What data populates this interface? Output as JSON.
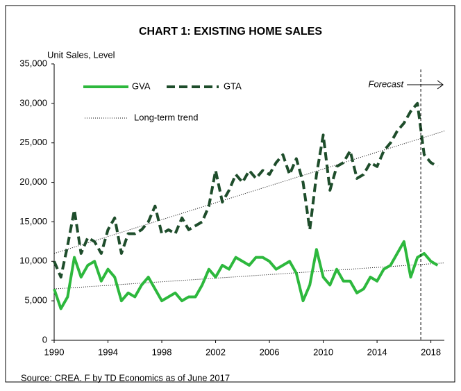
{
  "chart_data": {
    "type": "line",
    "title": "CHART 1: EXISTING HOME SALES",
    "y_axis_label": "Unit Sales, Level",
    "forecast_label": "Forecast",
    "forecast_start": 2017.25,
    "source": "Source: CREA. F by TD Economics as of  June 2017",
    "x": [
      1990,
      1990.5,
      1991,
      1991.5,
      1992,
      1992.5,
      1993,
      1993.5,
      1994,
      1994.5,
      1995,
      1995.5,
      1996,
      1996.5,
      1997,
      1997.5,
      1998,
      1998.5,
      1999,
      1999.5,
      2000,
      2000.5,
      2001,
      2001.5,
      2002,
      2002.5,
      2003,
      2003.5,
      2004,
      2004.5,
      2005,
      2005.5,
      2006,
      2006.5,
      2007,
      2007.5,
      2008,
      2008.5,
      2009,
      2009.5,
      2010,
      2010.5,
      2011,
      2011.5,
      2012,
      2012.5,
      2013,
      2013.5,
      2014,
      2014.5,
      2015,
      2015.5,
      2016,
      2016.5,
      2017,
      2017.5,
      2018,
      2018.5
    ],
    "series": [
      {
        "name": "GVA",
        "color": "#2db83d",
        "style": "solid",
        "values": [
          6500,
          4000,
          5500,
          10500,
          8000,
          9500,
          10000,
          7500,
          9000,
          8000,
          5000,
          6000,
          5500,
          7000,
          8000,
          6500,
          5000,
          5500,
          6000,
          5000,
          5500,
          5500,
          7000,
          9000,
          8000,
          9500,
          9000,
          10500,
          10000,
          9500,
          10500,
          10500,
          10000,
          9000,
          9500,
          10000,
          8500,
          5000,
          7000,
          11500,
          8000,
          7000,
          9000,
          7500,
          7500,
          6000,
          6500,
          8000,
          7500,
          9000,
          9500,
          11000,
          12500,
          8000,
          10500,
          11000,
          10000,
          9500
        ]
      },
      {
        "name": "GTA",
        "color": "#1e4d2b",
        "style": "dashed",
        "values": [
          10000,
          8000,
          12000,
          16500,
          11000,
          13000,
          12500,
          11000,
          14000,
          15500,
          11000,
          13500,
          13500,
          14000,
          15000,
          17000,
          13500,
          14000,
          13500,
          15500,
          14000,
          14500,
          15000,
          17000,
          21500,
          17500,
          19000,
          21000,
          20000,
          21500,
          20500,
          21500,
          21000,
          22500,
          23500,
          21000,
          23000,
          20000,
          14000,
          21000,
          26000,
          19000,
          22000,
          22500,
          24000,
          20500,
          21000,
          22500,
          22000,
          24000,
          25000,
          26500,
          27500,
          29000,
          30000,
          23500,
          22500,
          22000
        ]
      }
    ],
    "trend": {
      "name": "Long-term trend",
      "x": [
        1990,
        2019
      ],
      "lines": [
        [
          11000,
          26500
        ],
        [
          6500,
          9800
        ]
      ]
    },
    "xlim": [
      1990,
      2019
    ],
    "xticks": [
      1990,
      1994,
      1998,
      2002,
      2006,
      2010,
      2014,
      2018
    ],
    "ylim": [
      0,
      35000
    ],
    "yticks": [
      0,
      {
        "value": 5000,
        "label": "5,000"
      },
      {
        "value": 10000,
        "label": "10,000"
      },
      {
        "value": 15000,
        "label": "15,000"
      },
      {
        "value": 20000,
        "label": "20,000"
      },
      {
        "value": 25000,
        "label": "25,000"
      },
      {
        "value": 30000,
        "label": "30,000"
      },
      {
        "value": 35000,
        "label": "35,000"
      }
    ]
  }
}
